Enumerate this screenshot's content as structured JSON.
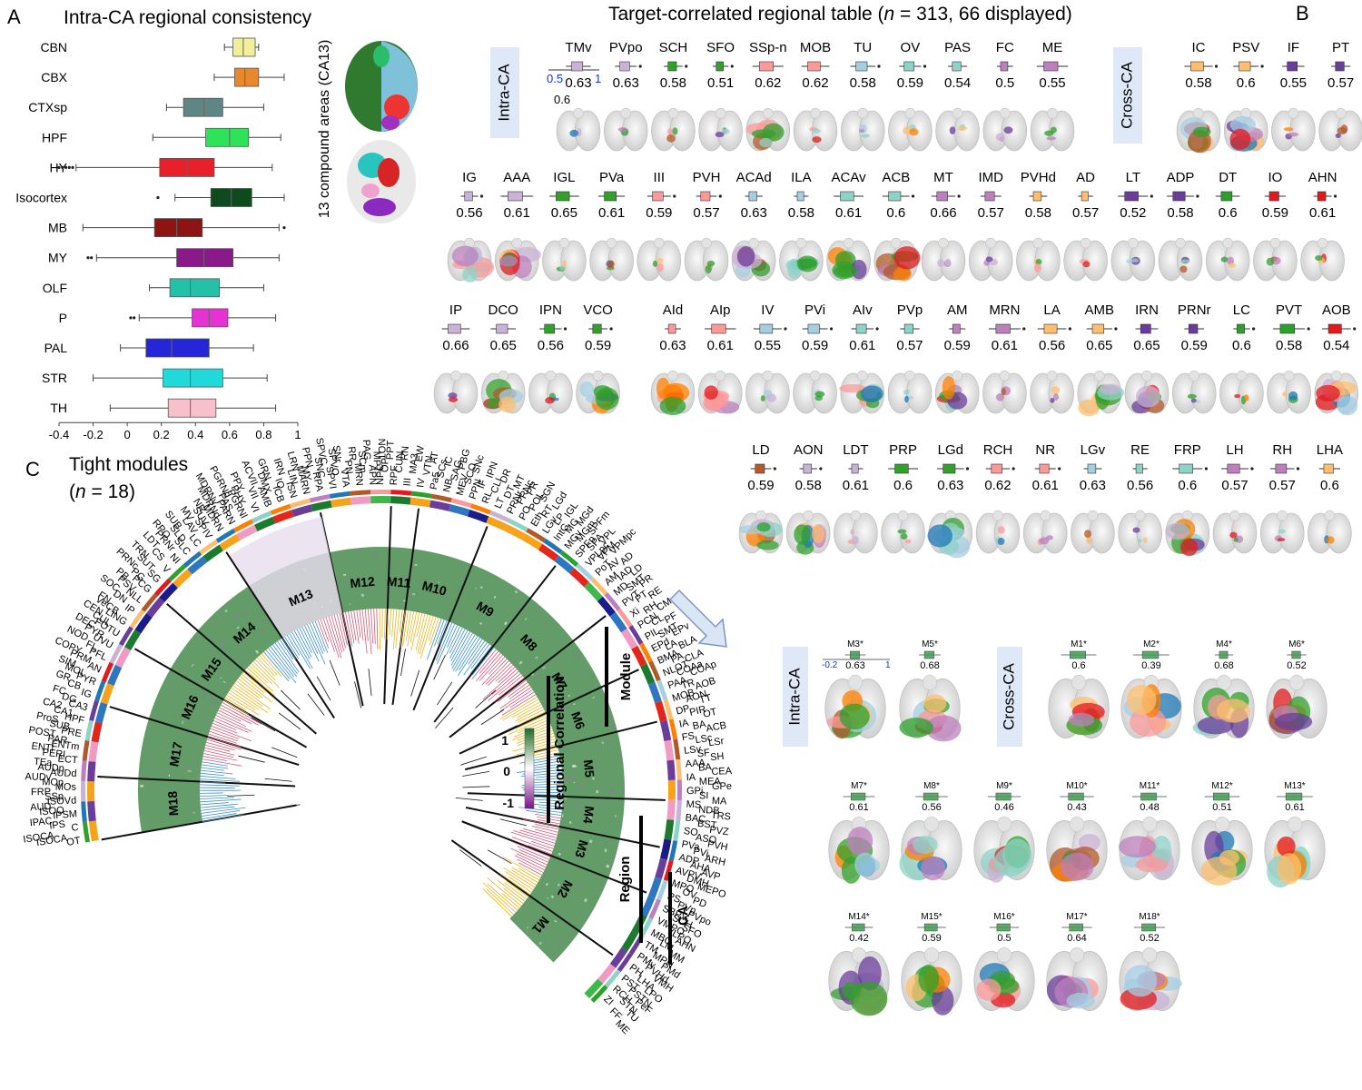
{
  "panel_a": {
    "letter": "A",
    "title": "Intra-CA regional consistency",
    "side_label": "13 compound areas (CA13)",
    "chart_data": {
      "type": "boxplot",
      "xlim": [
        -0.4,
        1.0
      ],
      "xticks": [
        "-0.4",
        "-0.2",
        "0",
        "0.2",
        "0.4",
        "0.6",
        "0.8",
        "1"
      ],
      "categories": [
        "CBN",
        "CBX",
        "CTXsp",
        "HPF",
        "HY",
        "Isocortex",
        "MB",
        "MY",
        "OLF",
        "P",
        "PAL",
        "STR",
        "TH"
      ],
      "boxes": [
        {
          "label": "CBN",
          "whisker_low": 0.57,
          "q1": 0.62,
          "median": 0.68,
          "q3": 0.75,
          "whisker_high": 0.77,
          "outliers": [],
          "color": "#f3ee9a"
        },
        {
          "label": "CBX",
          "whisker_low": 0.51,
          "q1": 0.63,
          "median": 0.69,
          "q3": 0.77,
          "whisker_high": 0.92,
          "outliers": [],
          "color": "#e8882a"
        },
        {
          "label": "CTXsp",
          "whisker_low": 0.23,
          "q1": 0.33,
          "median": 0.45,
          "q3": 0.56,
          "whisker_high": 0.8,
          "outliers": [],
          "color": "#5f8585"
        },
        {
          "label": "HPF",
          "whisker_low": 0.15,
          "q1": 0.46,
          "median": 0.6,
          "q3": 0.71,
          "whisker_high": 0.9,
          "outliers": [],
          "color": "#2ee35a"
        },
        {
          "label": "HY",
          "whisker_low": -0.3,
          "q1": 0.19,
          "median": 0.35,
          "q3": 0.51,
          "whisker_high": 0.85,
          "outliers": [
            -0.32,
            -0.34,
            -0.36,
            -0.38,
            -0.4
          ],
          "color": "#e8202a"
        },
        {
          "label": "Isocortex",
          "whisker_low": 0.28,
          "q1": 0.49,
          "median": 0.61,
          "q3": 0.73,
          "whisker_high": 0.92,
          "outliers": [
            0.18
          ],
          "color": "#0e4a1e"
        },
        {
          "label": "MB",
          "whisker_low": -0.26,
          "q1": 0.16,
          "median": 0.29,
          "q3": 0.44,
          "whisker_high": 0.89,
          "outliers": [
            0.92
          ],
          "color": "#8e1414"
        },
        {
          "label": "MY",
          "whisker_low": -0.18,
          "q1": 0.29,
          "median": 0.45,
          "q3": 0.62,
          "whisker_high": 0.89,
          "outliers": [
            -0.21,
            -0.23
          ],
          "color": "#8a1a8a"
        },
        {
          "label": "OLF",
          "whisker_low": 0.13,
          "q1": 0.25,
          "median": 0.37,
          "q3": 0.54,
          "whisker_high": 0.8,
          "outliers": [],
          "color": "#25c0a8"
        },
        {
          "label": "P",
          "whisker_low": 0.07,
          "q1": 0.38,
          "median": 0.48,
          "q3": 0.59,
          "whisker_high": 0.87,
          "outliers": [
            0.02,
            0.04
          ],
          "color": "#e432d3"
        },
        {
          "label": "PAL",
          "whisker_low": -0.04,
          "q1": 0.11,
          "median": 0.26,
          "q3": 0.48,
          "whisker_high": 0.74,
          "outliers": [],
          "color": "#2525d9"
        },
        {
          "label": "STR",
          "whisker_low": -0.2,
          "q1": 0.21,
          "median": 0.37,
          "q3": 0.56,
          "whisker_high": 0.82,
          "outliers": [],
          "color": "#22d9d9"
        },
        {
          "label": "TH",
          "whisker_low": -0.1,
          "q1": 0.24,
          "median": 0.37,
          "q3": 0.52,
          "whisker_high": 0.87,
          "outliers": [],
          "color": "#f7c0cb"
        }
      ]
    }
  },
  "panel_b": {
    "letter": "B",
    "title_prefix": "Target-correlated regional table (",
    "title_n": "n",
    "title_suffix": " = 313, 66 displayed)",
    "intra_tag": "Intra-CA",
    "cross_tag": "Cross-CA",
    "key_left": "0.5",
    "key_right": "1",
    "key_value": "0.6",
    "rows": [
      [
        [
          "TMv",
          "0.63"
        ],
        [
          "PVpo",
          "0.63"
        ],
        [
          "SCH",
          "0.58"
        ],
        [
          "SFO",
          "0.51"
        ],
        [
          "SSp-n",
          "0.62"
        ],
        [
          "MOB",
          "0.62"
        ],
        [
          "TU",
          "0.58"
        ],
        [
          "OV",
          "0.59"
        ],
        [
          "PAS",
          "0.54"
        ],
        [
          "FC",
          "0.5"
        ],
        [
          "ME",
          "0.55"
        ],
        [
          "IC",
          "0.58"
        ],
        [
          "PSV",
          "0.6"
        ],
        [
          "IF",
          "0.55"
        ],
        [
          "PT",
          "0.57"
        ]
      ],
      [
        [
          "IG",
          "0.56"
        ],
        [
          "AAA",
          "0.61"
        ],
        [
          "IGL",
          "0.65"
        ],
        [
          "PVa",
          "0.61"
        ],
        [
          "III",
          "0.59"
        ],
        [
          "PVH",
          "0.57"
        ],
        [
          "ACAd",
          "0.63"
        ],
        [
          "ILA",
          "0.58"
        ],
        [
          "ACAv",
          "0.61"
        ],
        [
          "ACB",
          "0.6"
        ],
        [
          "MT",
          "0.66"
        ],
        [
          "IMD",
          "0.57"
        ],
        [
          "PVHd",
          "0.58"
        ],
        [
          "AD",
          "0.57"
        ],
        [
          "LT",
          "0.52"
        ],
        [
          "ADP",
          "0.58"
        ],
        [
          "DT",
          "0.6"
        ],
        [
          "IO",
          "0.59"
        ],
        [
          "AHN",
          "0.61"
        ]
      ],
      [
        [
          "IP",
          "0.66"
        ],
        [
          "DCO",
          "0.65"
        ],
        [
          "IPN",
          "0.56"
        ],
        [
          "VCO",
          "0.59"
        ],
        [
          "AId",
          "0.63"
        ],
        [
          "AIp",
          "0.61"
        ],
        [
          "IV",
          "0.55"
        ],
        [
          "PVi",
          "0.59"
        ],
        [
          "AIv",
          "0.61"
        ],
        [
          "PVp",
          "0.57"
        ],
        [
          "AM",
          "0.59"
        ],
        [
          "MRN",
          "0.61"
        ],
        [
          "LA",
          "0.56"
        ],
        [
          "AMB",
          "0.65"
        ],
        [
          "IRN",
          "0.65"
        ],
        [
          "PRNr",
          "0.59"
        ],
        [
          "LC",
          "0.6"
        ],
        [
          "PVT",
          "0.58"
        ],
        [
          "AOB",
          "0.54"
        ]
      ],
      [
        [
          "LD",
          "0.59"
        ],
        [
          "AON",
          "0.58"
        ],
        [
          "LDT",
          "0.61"
        ],
        [
          "PRP",
          "0.6"
        ],
        [
          "LGd",
          "0.63"
        ],
        [
          "RCH",
          "0.62"
        ],
        [
          "NR",
          "0.61"
        ],
        [
          "LGv",
          "0.63"
        ],
        [
          "RE",
          "0.56"
        ],
        [
          "FRP",
          "0.6"
        ],
        [
          "LH",
          "0.57"
        ],
        [
          "RH",
          "0.57"
        ],
        [
          "LHA",
          "0.6"
        ]
      ]
    ]
  },
  "panel_c": {
    "letter": "C",
    "title": "Tight modules",
    "subtitle_prefix": "(",
    "subtitle_n": "n",
    "subtitle_suffix": " = 18)",
    "modules": [
      "M1",
      "M2",
      "M3",
      "M4",
      "M5",
      "M6",
      "M7",
      "M8",
      "M9",
      "M10",
      "M11",
      "M12",
      "M13",
      "M14",
      "M15",
      "M16",
      "M17",
      "M18"
    ],
    "ring_labels": {
      "module": "Module",
      "region": "Region",
      "ca": "CA"
    },
    "colorbar": {
      "title": "Regional Correlation",
      "ticks": [
        "1",
        "0",
        "-1"
      ]
    },
    "perimeter_labels": [
      "OT",
      "ISOCA",
      "ISOCA",
      "C",
      "IPS",
      "IPAC",
      "IPSM",
      "ISOO",
      "AUD",
      "ISOVd",
      "SSp",
      "FRP",
      "MOs",
      "MOp",
      "AUDv",
      "AUDd",
      "AUDp",
      "TEa",
      "ECT",
      "PERI",
      "ENTl",
      "ENTm",
      "PAR",
      "POST",
      "PRE",
      "SUB",
      "ProS",
      "HPF",
      "CA1",
      "CA2",
      "CA3",
      "DG",
      "FC",
      "IG",
      "CB",
      "GR",
      "PYR",
      "MOL",
      "SIM",
      "AN",
      "PRM",
      "COPY",
      "PFL",
      "FL",
      "NOD",
      "UVU",
      "PYR",
      "DEC",
      "FOTU",
      "CUL",
      "CEN",
      "LING",
      "VeCB",
      "FN",
      "IP",
      "DN",
      "SOC",
      "NLL",
      "PSV",
      "PB",
      "PCG",
      "PG",
      "PRNc",
      "SG",
      "SUT",
      "TRN",
      "V",
      "CS",
      "LDT",
      "NI",
      "PRNr",
      "RPO",
      "SLC",
      "SLD",
      "SUB",
      "LC",
      "LAV",
      "MV",
      "SPIV",
      "SUV",
      "NR",
      "MDRN",
      "MDRNd",
      "MDRNv",
      "PARN",
      "PAS",
      "PGRNd",
      "PGRNl",
      "PHY",
      "PPY",
      "VI",
      "VII",
      "ACVII",
      "AMB",
      "DMX",
      "GRN",
      "ICB",
      "IO",
      "IRN",
      "ISN",
      "LIN",
      "LRN",
      "MARN",
      "MY",
      "PPN",
      "RPA",
      "SNC",
      "SPVC",
      "SPVI",
      "SPVO",
      "SNr",
      "VTA",
      "PN",
      "RR",
      "MRN",
      "SCm",
      "PAG",
      "APN",
      "MPT",
      "NOT",
      "NPC",
      "OP",
      "PPT",
      "RPF",
      "CUN",
      "RN",
      "III",
      "MA3",
      "EW",
      "IV",
      "VTN",
      "AT",
      "Pa5",
      "SCs",
      "IC",
      "NB",
      "SAG",
      "PBG",
      "MEV",
      "SCO",
      "SNc",
      "PPN",
      "IF",
      "IPN",
      "RL",
      "CLI",
      "DR",
      "LT",
      "DT",
      "MT",
      "PRNr",
      "PRNc",
      "PR",
      "PO",
      "POL",
      "SGN",
      "Eth",
      "RT",
      "LGd",
      "LGv",
      "LP",
      "IGL",
      "IntG",
      "MG",
      "MGd",
      "MGv",
      "MGm",
      "SPFm",
      "SPFp",
      "SPA",
      "VPL",
      "VPLpc",
      "VPM",
      "VPMpc",
      "PoT",
      "AV",
      "AD",
      "AM",
      "IAD",
      "LD",
      "MD",
      "SMT",
      "PR",
      "PVT",
      "PT",
      "RE",
      "Xi",
      "RH",
      "CM",
      "PCN",
      "CL",
      "PF",
      "PIL",
      "SMT",
      "EPv",
      "EPd",
      "LA",
      "BLA",
      "BMA",
      "PA",
      "CLA",
      "NLOT",
      "COAa",
      "COAp",
      "PAA",
      "TR",
      "AOB",
      "MOB",
      "AON",
      "TT",
      "DP",
      "PIR",
      "OT",
      "IA",
      "BA",
      "ACB",
      "FS",
      "LSc",
      "LSr",
      "LSv",
      "SF",
      "SH",
      "AAA",
      "BA",
      "CEA",
      "IA",
      "MEA",
      "GPe",
      "GPi",
      "SI",
      "MA",
      "MS",
      "NDB",
      "TRS",
      "BAC",
      "BST",
      "PVZ",
      "SO",
      "ASO",
      "PVH",
      "PVa",
      "PVi",
      "ARH",
      "ADP",
      "AHA",
      "AVP",
      "AVPV",
      "DMH",
      "MEPO",
      "MPO",
      "OV",
      "PD",
      "PS",
      "PVp",
      "PVpo",
      "SBPV",
      "SCH",
      "SFO",
      "VMPO",
      "VLPO",
      "AHN",
      "MBO",
      "LM",
      "MM",
      "TM",
      "MPN",
      "PMd",
      "PMv",
      "PVHd",
      "VMH",
      "PH",
      "LHA",
      "LPO",
      "PST",
      "PSTN",
      "PeF",
      "RCH",
      "STN",
      "TU",
      "ZI",
      "FF",
      "ME"
    ]
  },
  "panel_d": {
    "intra_tag": "Intra-CA",
    "cross_tag": "Cross-CA",
    "key_left": "-0.2",
    "key_right": "1",
    "intra": [
      [
        "M3*",
        "0.63"
      ],
      [
        "M5*",
        "0.68"
      ]
    ],
    "cross": [
      [
        "M1*",
        "0.6"
      ],
      [
        "M2*",
        "0.39"
      ],
      [
        "M4*",
        "0.68"
      ],
      [
        "M6*",
        "0.52"
      ]
    ],
    "row2": [
      [
        "M7*",
        "0.61"
      ],
      [
        "M8*",
        "0.56"
      ],
      [
        "M9*",
        "0.46"
      ],
      [
        "M10*",
        "0.43"
      ],
      [
        "M11*",
        "0.48"
      ],
      [
        "M12*",
        "0.51"
      ],
      [
        "M13*",
        "0.61"
      ]
    ],
    "row3": [
      [
        "M14*",
        "0.42"
      ],
      [
        "M15*",
        "0.59"
      ],
      [
        "M16*",
        "0.5"
      ],
      [
        "M17*",
        "0.64"
      ],
      [
        "M18*",
        "0.52"
      ]
    ]
  },
  "colors": {
    "tag_bg": "#dfe8f6",
    "heat_green": "#2f7b35",
    "heat_purple": "#b35cc8",
    "key_blue": "#1a34c8",
    "dendro_blue": "#3a8fcb",
    "dendro_red": "#d45a7a",
    "dendro_yellow": "#e9b61d",
    "arrow_fill": "#dbe6f5",
    "arrow_stroke": "#7d95c4"
  }
}
